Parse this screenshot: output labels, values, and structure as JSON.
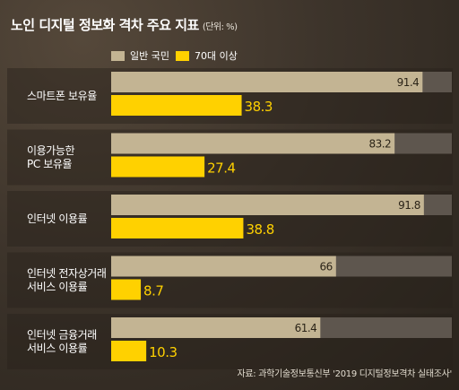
{
  "title": "노인 디지털 정보화 격차 주요 지표",
  "unit_note": "(단위: %)",
  "source": "자료: 과학기술정보통신부 '2019 디지털정보격차 실태조사'",
  "colors": {
    "general": "#c3b493",
    "senior": "#ffd100",
    "track": "#5e564e",
    "panel": "rgba(40,34,27,0.45)"
  },
  "chart_data": {
    "type": "bar",
    "orientation": "horizontal",
    "xlim": [
      0,
      100
    ],
    "legend_position": "top",
    "categories": [
      [
        "스마트폰 보유율"
      ],
      [
        "이용가능한",
        "PC 보유율"
      ],
      [
        "인터넷 이용률"
      ],
      [
        "인터넷 전자상거래",
        "서비스 이용률"
      ],
      [
        "인터넷 금융거래",
        "서비스 이용률"
      ]
    ],
    "series": [
      {
        "name": "일반 국민",
        "values": [
          91.4,
          83.2,
          91.8,
          66,
          61.4
        ]
      },
      {
        "name": "70대 이상",
        "values": [
          38.3,
          27.4,
          38.8,
          8.7,
          10.3
        ]
      }
    ]
  }
}
